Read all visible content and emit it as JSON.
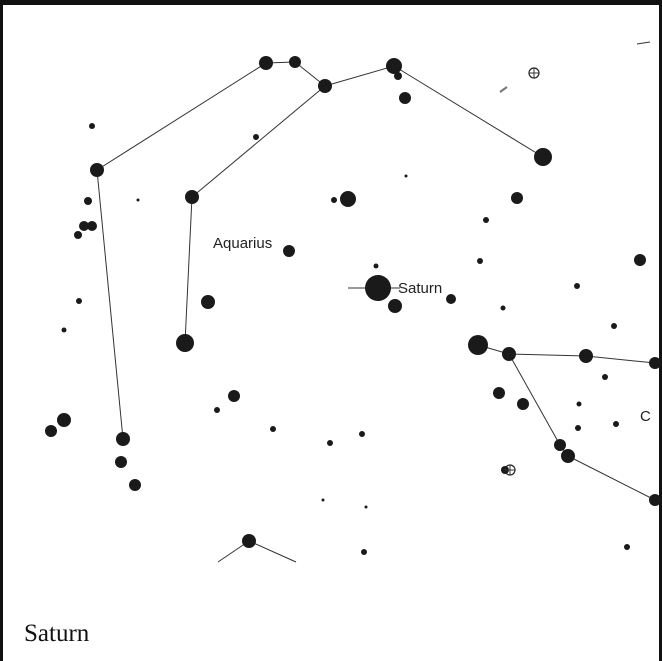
{
  "map": {
    "labels": [
      "Aquarius",
      "Saturn",
      "C"
    ],
    "caption": "Saturn"
  }
}
